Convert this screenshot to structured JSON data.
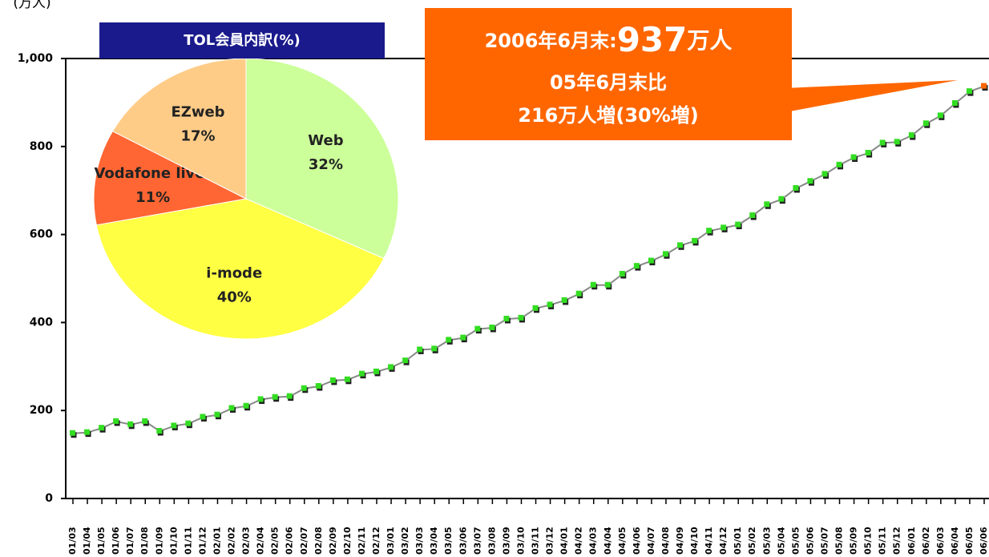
{
  "chart_data": [
    {
      "type": "line",
      "y_label": "(万人)",
      "categories": [
        "01/03",
        "01/04",
        "01/05",
        "01/06",
        "01/07",
        "01/08",
        "01/09",
        "01/10",
        "01/11",
        "01/12",
        "02/01",
        "02/02",
        "02/03",
        "02/04",
        "02/05",
        "02/06",
        "02/07",
        "02/08",
        "02/09",
        "02/10",
        "02/11",
        "02/12",
        "03/01",
        "03/02",
        "03/03",
        "03/04",
        "03/05",
        "03/06",
        "03/07",
        "03/08",
        "03/09",
        "03/10",
        "03/11",
        "03/12",
        "04/01",
        "04/02",
        "04/03",
        "04/04",
        "04/05",
        "04/06",
        "04/07",
        "04/08",
        "04/09",
        "04/10",
        "04/11",
        "04/12",
        "05/01",
        "05/02",
        "05/03",
        "05/04",
        "05/05",
        "05/06",
        "05/07",
        "05/08",
        "05/09",
        "05/10",
        "05/11",
        "05/12",
        "06/01",
        "06/02",
        "06/03",
        "06/04",
        "06/05",
        "06/06"
      ],
      "series": [
        {
          "color": "#33dd22",
          "values": [
            148,
            150,
            160,
            175,
            168,
            175,
            153,
            165,
            170,
            185,
            190,
            205,
            210,
            225,
            230,
            232,
            250,
            255,
            268,
            270,
            283,
            288,
            298,
            313,
            338,
            340,
            360,
            365,
            385,
            388,
            408,
            410,
            432,
            440,
            450,
            465,
            485,
            485,
            510,
            528,
            540,
            555,
            575,
            585,
            608,
            615,
            622,
            643,
            668,
            680,
            705,
            721,
            737,
            758,
            775,
            785,
            808,
            810,
            825,
            852,
            870,
            898,
            925,
            937
          ]
        }
      ],
      "highlight_color": "#ff6600",
      "ylim": [
        0,
        1000
      ],
      "yticks": [
        0,
        200,
        400,
        600,
        800,
        {
          "value": 1000,
          "label": "1,000"
        }
      ],
      "annotation": {
        "date": "2006年6月末:",
        "total": "937",
        "unit": "万人",
        "comparison": "05年6月末比",
        "increase": "216万人増(30%増)"
      }
    },
    {
      "type": "pie",
      "title": "TOL会員内訳(%)",
      "categories": [
        "Web",
        "i-mode",
        "Vodafone live!",
        "EZweb"
      ],
      "values": [
        32,
        40,
        11,
        17
      ],
      "value_labels": [
        "32%",
        "40%",
        "11%",
        "17%"
      ],
      "colors": [
        "#ccff99",
        "#ffff44",
        "#ff6633",
        "#ffcc88"
      ]
    }
  ]
}
